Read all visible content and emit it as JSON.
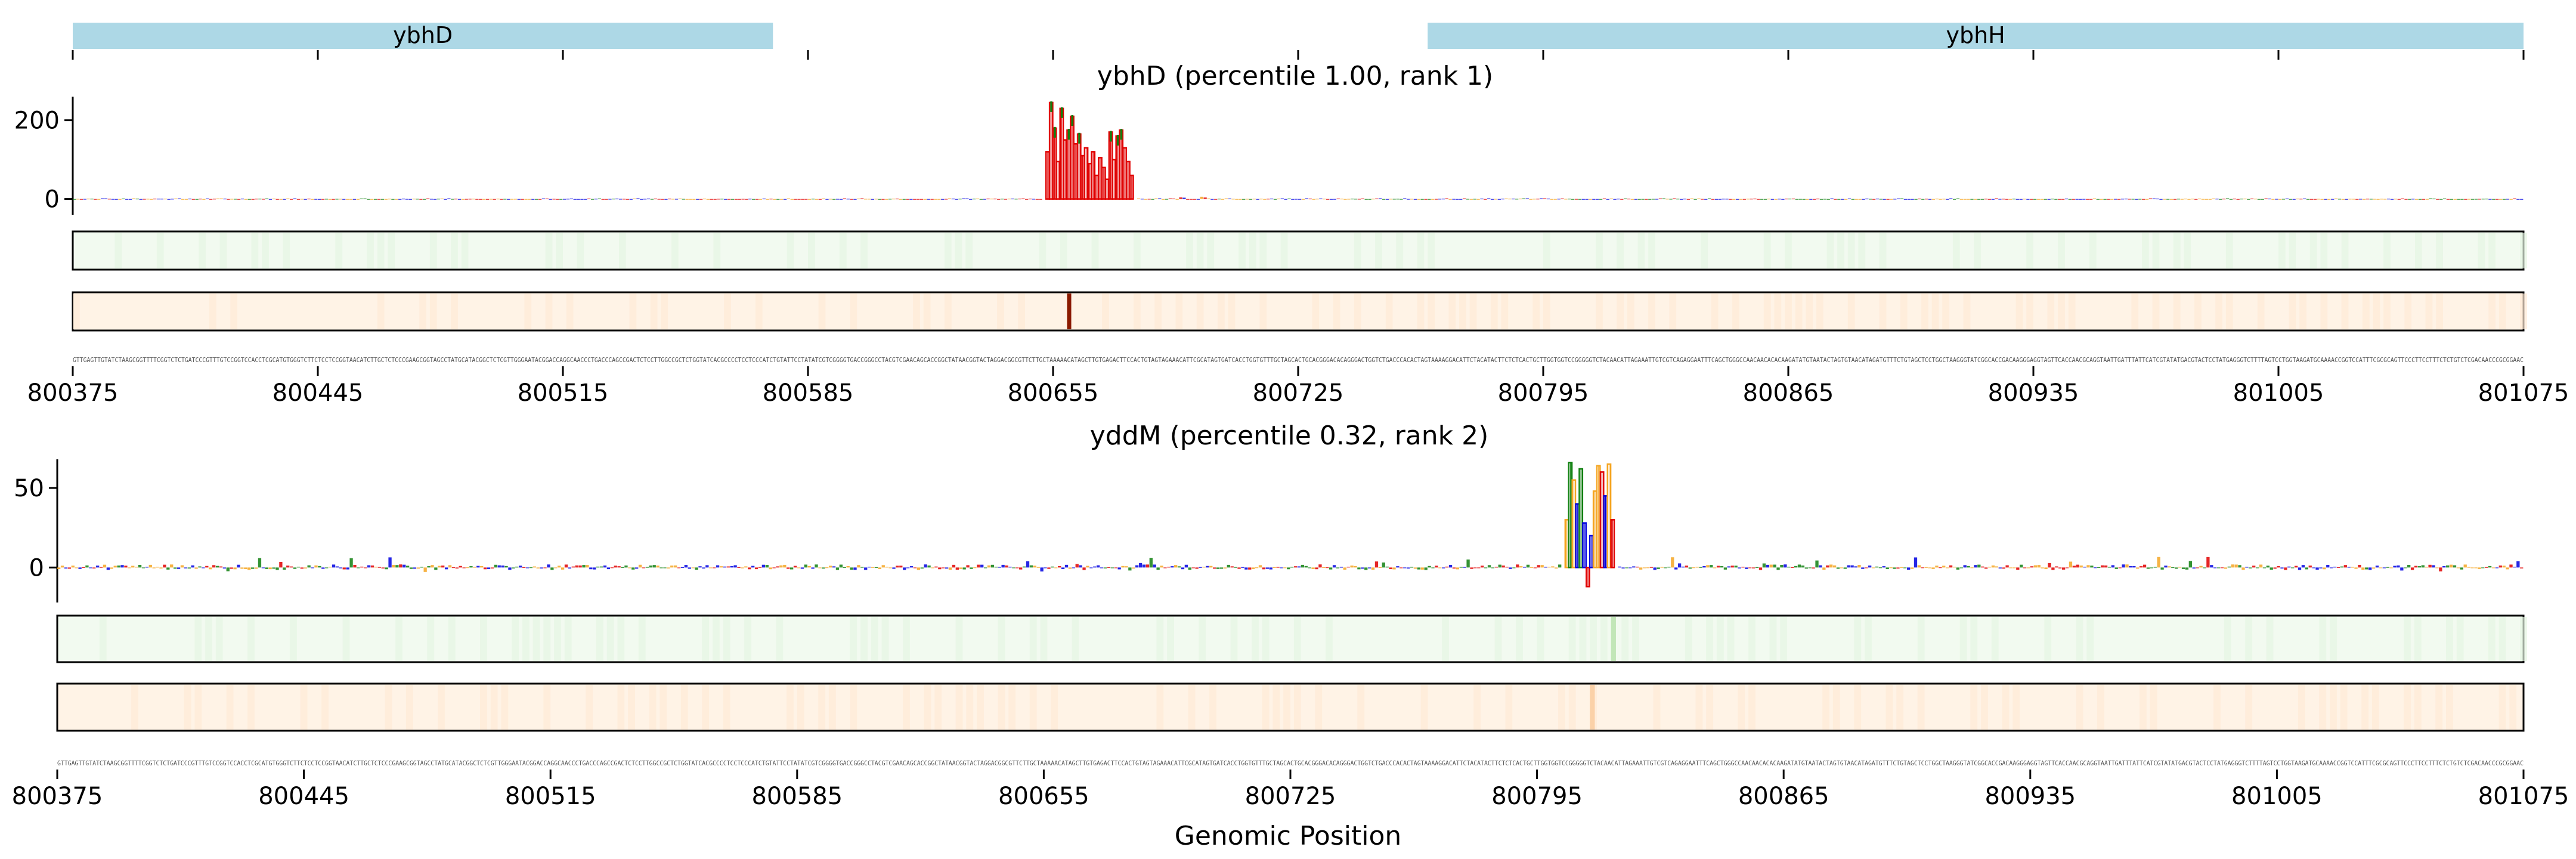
{
  "chart_data": [
    {
      "type": "genomic-tracks",
      "xlabel": "Genomic Position",
      "xlim": [
        800375,
        801075
      ],
      "x_ticks": [
        "800375",
        "800445",
        "800515",
        "800585",
        "800655",
        "800725",
        "800795",
        "800865",
        "800935",
        "801005",
        "801075"
      ],
      "gene_track": [
        {
          "name": "ybhD",
          "start": 800375,
          "end": 800575
        },
        {
          "name": "ybhH",
          "end": 801075,
          "start": 800762
        }
      ],
      "panels": [
        {
          "title": "ybhD (percentile 1.00, rank 1)",
          "ylim": [
            -40,
            260
          ],
          "y_ticks": [
            "200",
            "0"
          ],
          "y_tick_values": [
            200,
            0
          ],
          "peak_region": [
            800653,
            800677
          ],
          "peak_color": "#e00000",
          "peaks": [
            {
              "x": 800653,
              "y": 120
            },
            {
              "x": 800654,
              "y": 245
            },
            {
              "x": 800655,
              "y": 180
            },
            {
              "x": 800656,
              "y": 95
            },
            {
              "x": 800657,
              "y": 230
            },
            {
              "x": 800658,
              "y": 150
            },
            {
              "x": 800659,
              "y": 175
            },
            {
              "x": 800660,
              "y": 210
            },
            {
              "x": 800661,
              "y": 140
            },
            {
              "x": 800662,
              "y": 165
            },
            {
              "x": 800663,
              "y": 110
            },
            {
              "x": 800664,
              "y": 130
            },
            {
              "x": 800665,
              "y": 90
            },
            {
              "x": 800666,
              "y": 120
            },
            {
              "x": 800667,
              "y": 60
            },
            {
              "x": 800668,
              "y": 105
            },
            {
              "x": 800669,
              "y": 80
            },
            {
              "x": 800670,
              "y": 50
            },
            {
              "x": 800671,
              "y": 170
            },
            {
              "x": 800672,
              "y": 100
            },
            {
              "x": 800673,
              "y": 160
            },
            {
              "x": 800674,
              "y": 175
            },
            {
              "x": 800675,
              "y": 130
            },
            {
              "x": 800676,
              "y": 95
            },
            {
              "x": 800677,
              "y": 60
            }
          ],
          "heatmap_green_highlight": null,
          "heatmap_orange_highlight": 800659
        },
        {
          "title": "yddM (percentile 0.32, rank 2)",
          "ylim": [
            -22,
            68
          ],
          "y_ticks": [
            "50",
            "0"
          ],
          "y_tick_values": [
            50,
            0
          ],
          "peak_region": [
            800803,
            800816
          ],
          "peaks": [
            {
              "x": 800803,
              "y": 30,
              "c": "#f5a623"
            },
            {
              "x": 800804,
              "y": 66,
              "c": "#108010"
            },
            {
              "x": 800805,
              "y": 55,
              "c": "#f5a623"
            },
            {
              "x": 800806,
              "y": 40,
              "c": "#0000e0"
            },
            {
              "x": 800807,
              "y": 62,
              "c": "#108010"
            },
            {
              "x": 800808,
              "y": 28,
              "c": "#0000e0"
            },
            {
              "x": 800809,
              "y": -12,
              "c": "#e00000"
            },
            {
              "x": 800810,
              "y": 20,
              "c": "#0000e0"
            },
            {
              "x": 800811,
              "y": 48,
              "c": "#f5a623"
            },
            {
              "x": 800812,
              "y": 64,
              "c": "#f5a623"
            },
            {
              "x": 800813,
              "y": 60,
              "c": "#e00000"
            },
            {
              "x": 800814,
              "y": 45,
              "c": "#0000e0"
            },
            {
              "x": 800815,
              "y": 65,
              "c": "#f5a623"
            },
            {
              "x": 800816,
              "y": 30,
              "c": "#e00000"
            }
          ],
          "heatmap_green_highlight": 800816,
          "heatmap_orange_highlight": 800810
        }
      ],
      "base_colors": {
        "A": "#108010",
        "C": "#0000e0",
        "G": "#f5a623",
        "T": "#e00000"
      },
      "gene_color": "#add8e6",
      "heatmap_green_bg": "#f2faf0",
      "heatmap_orange_bg": "#fff3e6"
    }
  ]
}
